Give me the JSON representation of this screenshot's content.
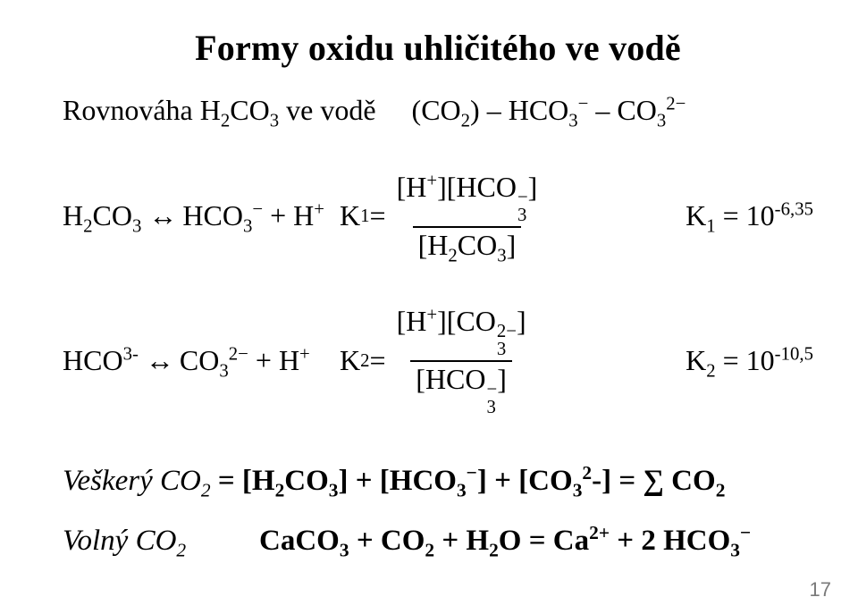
{
  "title": "Formy oxidu uhličitého ve vodě",
  "subtitle_a": "Rovnováha H",
  "subtitle_b": "CO",
  "subtitle_c": " ve vodě",
  "subtitle_d": "(CO",
  "subtitle_e": ") – HCO",
  "subtitle_f": " – CO",
  "eq1_lhs_a": "H",
  "eq1_lhs_b": "CO",
  "eq1_lhs_c": " HCO",
  "eq1_lhs_d": " + H",
  "eq1_K": "K",
  "eq1_equals": " = ",
  "eq1_num_a": "[H",
  "eq1_num_b": "][HCO",
  "eq1_num_c": "]",
  "eq1_den_a": "[H",
  "eq1_den_b": "CO",
  "eq1_den_c": "]",
  "eq1_rhs_a": "K",
  "eq1_rhs_b": " = 10",
  "eq1_rhs_exp": "-6,35",
  "eq2_lhs_a": "HCO",
  "eq2_lhs_b": " CO",
  "eq2_lhs_c": " + H",
  "eq2_K": "K",
  "eq2_equals": " = ",
  "eq2_num_a": "[H",
  "eq2_num_b": "][CO",
  "eq2_num_c": "]",
  "eq2_den_a": "[HCO",
  "eq2_den_b": "]",
  "eq2_rhs_a": "K",
  "eq2_rhs_b": " = 10",
  "eq2_rhs_exp": "-10,5",
  "bottom1_a": "Veškerý CO",
  "bottom1_b": " = [H",
  "bottom1_c": "CO",
  "bottom1_d": "] + [HCO",
  "bottom1_e": "] + [CO",
  "bottom1_f": "-] = ∑ CO",
  "bottom2_label_a": "Volný CO",
  "bottom2_eq_a": "CaCO",
  "bottom2_eq_b": " + CO",
  "bottom2_eq_c": " + H",
  "bottom2_eq_d": "O = Ca",
  "bottom2_eq_e": " +  2 HCO",
  "page_number": "17",
  "s2": "2",
  "s3": "3",
  "s1": "1",
  "minus": "−",
  "plus": "+",
  "twominus": "2−",
  "threeminus": "3-",
  "twoplus": "2+",
  "arrow": "↔"
}
